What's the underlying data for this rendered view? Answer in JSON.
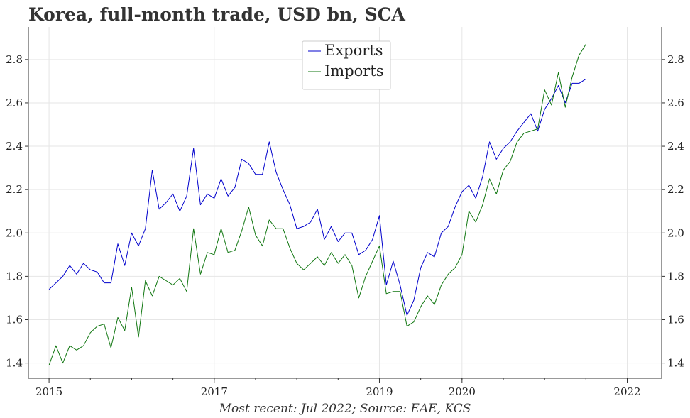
{
  "title": "Korea, full-month trade, USD bn, SCA",
  "footer": "Most recent: Jul 2022; Source: EAE, KCS",
  "chart_data": {
    "type": "line",
    "x_axis": {
      "type": "date",
      "range": [
        "2014-10",
        "2022-06"
      ],
      "tick_labels": [
        "2015",
        "2017",
        "2019",
        "2020",
        "2022"
      ],
      "tick_dates": [
        "2015-01",
        "2017-01",
        "2019-01",
        "2020-01",
        "2022-01"
      ]
    },
    "y_axis": {
      "range": [
        1.33,
        2.95
      ],
      "tick_values": [
        1.4,
        1.6,
        1.8,
        2.0,
        2.2,
        2.4,
        2.6,
        2.8
      ],
      "tick_labels": [
        "1.4",
        "1.6",
        "1.8",
        "2.0",
        "2.2",
        "2.4",
        "2.6",
        "2.8"
      ],
      "sides": [
        "left",
        "right"
      ]
    },
    "grid": true,
    "legend": {
      "position": "top-center"
    },
    "x_start": "2015-01",
    "series": [
      {
        "name": "Exports",
        "color": "#0000cc",
        "values": [
          1.74,
          1.77,
          1.8,
          1.85,
          1.81,
          1.86,
          1.83,
          1.82,
          1.77,
          1.77,
          1.95,
          1.85,
          2.0,
          1.94,
          2.02,
          2.29,
          2.11,
          2.14,
          2.18,
          2.1,
          2.17,
          2.39,
          2.13,
          2.18,
          2.16,
          2.25,
          2.17,
          2.21,
          2.34,
          2.32,
          2.27,
          2.27,
          2.42,
          2.28,
          2.2,
          2.13,
          2.02,
          2.03,
          2.05,
          2.11,
          1.97,
          2.03,
          1.96,
          2.0,
          2.0,
          1.9,
          1.92,
          1.97,
          2.08,
          1.76,
          1.87,
          1.76,
          1.62,
          1.69,
          1.84,
          1.91,
          1.89,
          2.0,
          2.03,
          2.12,
          2.19,
          2.22,
          2.16,
          2.26,
          2.42,
          2.34,
          2.39,
          2.42,
          2.47,
          2.51,
          2.55,
          2.47,
          2.57,
          2.62,
          2.68,
          2.6,
          2.69,
          2.69,
          2.71
        ]
      },
      {
        "name": "Imports",
        "color": "#117711",
        "values": [
          1.39,
          1.48,
          1.4,
          1.48,
          1.46,
          1.48,
          1.54,
          1.57,
          1.58,
          1.47,
          1.61,
          1.55,
          1.75,
          1.52,
          1.78,
          1.71,
          1.8,
          1.78,
          1.76,
          1.79,
          1.73,
          2.02,
          1.81,
          1.91,
          1.9,
          2.02,
          1.91,
          1.92,
          2.01,
          2.12,
          1.99,
          1.94,
          2.06,
          2.02,
          2.02,
          1.93,
          1.86,
          1.83,
          1.86,
          1.89,
          1.85,
          1.91,
          1.86,
          1.9,
          1.85,
          1.7,
          1.8,
          1.87,
          1.94,
          1.72,
          1.73,
          1.73,
          1.57,
          1.59,
          1.66,
          1.71,
          1.67,
          1.76,
          1.81,
          1.84,
          1.9,
          2.1,
          2.05,
          2.13,
          2.25,
          2.18,
          2.29,
          2.33,
          2.42,
          2.46,
          2.47,
          2.48,
          2.66,
          2.59,
          2.74,
          2.58,
          2.72,
          2.82,
          2.87
        ]
      }
    ]
  }
}
